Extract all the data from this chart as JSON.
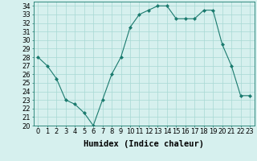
{
  "x": [
    0,
    1,
    2,
    3,
    4,
    5,
    6,
    7,
    8,
    9,
    10,
    11,
    12,
    13,
    14,
    15,
    16,
    17,
    18,
    19,
    20,
    21,
    22,
    23
  ],
  "y": [
    28,
    27,
    25.5,
    23,
    22.5,
    21.5,
    20,
    23,
    26,
    28,
    31.5,
    33,
    33.5,
    34,
    34,
    32.5,
    32.5,
    32.5,
    33.5,
    33.5,
    29.5,
    27,
    23.5,
    23.5
  ],
  "line_color": "#1a7a6e",
  "marker": "D",
  "marker_size": 2,
  "bg_color": "#d6f0ee",
  "grid_color": "#a8d8d4",
  "xlabel": "Humidex (Indice chaleur)",
  "ylim": [
    20,
    34.5
  ],
  "xlim": [
    -0.5,
    23.5
  ],
  "yticks": [
    20,
    21,
    22,
    23,
    24,
    25,
    26,
    27,
    28,
    29,
    30,
    31,
    32,
    33,
    34
  ],
  "xticks": [
    0,
    1,
    2,
    3,
    4,
    5,
    6,
    7,
    8,
    9,
    10,
    11,
    12,
    13,
    14,
    15,
    16,
    17,
    18,
    19,
    20,
    21,
    22,
    23
  ],
  "xlabel_fontsize": 7.5,
  "tick_fontsize": 6.0
}
